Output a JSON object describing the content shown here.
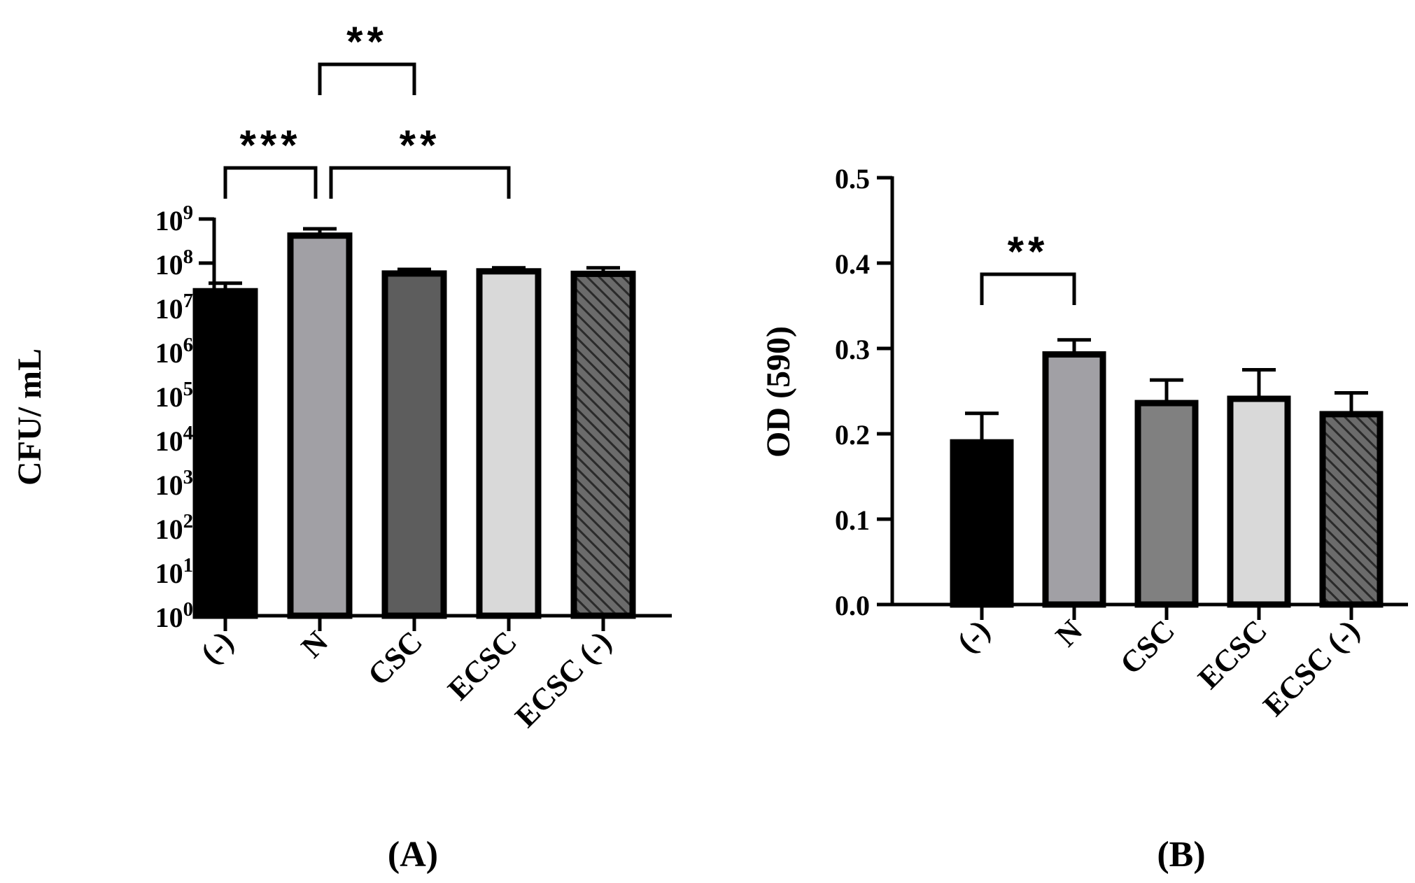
{
  "chart_data": [
    {
      "type": "bar",
      "panel_label": "(A)",
      "ylabel": "CFU/ mL",
      "yscale": "log10",
      "ylim": [
        1,
        1000000000
      ],
      "y_tick_exponents": [
        "0",
        "1",
        "2",
        "3",
        "4",
        "5",
        "6",
        "7",
        "8",
        "9"
      ],
      "y_tick_base": "10",
      "categories": [
        "(-)",
        "N",
        "CSC",
        "ECSC",
        "ECSC (-)"
      ],
      "values": [
        23000000,
        420000000,
        58000000,
        65000000,
        57000000
      ],
      "error_upper": [
        35000000,
        600000000,
        72000000,
        78000000,
        78000000
      ],
      "fills": [
        "#000000",
        "#a1a0a5",
        "#5d5d5d",
        "#d9d9d9",
        "hatch"
      ],
      "significance": [
        {
          "from": 0,
          "to": 1,
          "label": "***",
          "level": 1
        },
        {
          "from": 1,
          "to": 3,
          "label": "**",
          "level": 1
        },
        {
          "from": 1,
          "to": 2,
          "label": "**",
          "level": 2
        }
      ]
    },
    {
      "type": "bar",
      "panel_label": "(B)",
      "ylabel": "OD (590)",
      "yscale": "linear",
      "ylim": [
        0,
        0.5
      ],
      "y_ticks": [
        0.0,
        0.1,
        0.2,
        0.3,
        0.4,
        0.5
      ],
      "y_tick_labels": [
        "0.0",
        "0.1",
        "0.2",
        "0.3",
        "0.4",
        "0.5"
      ],
      "categories": [
        "(-)",
        "N",
        "CSC",
        "ECSC",
        "ECSC (-)"
      ],
      "values": [
        0.19,
        0.293,
        0.236,
        0.241,
        0.223
      ],
      "error_upper": [
        0.224,
        0.31,
        0.263,
        0.275,
        0.248
      ],
      "fills": [
        "#000000",
        "#a1a0a5",
        "#808080",
        "#d9d9d9",
        "hatch"
      ],
      "significance": [
        {
          "from": 0,
          "to": 1,
          "label": "**",
          "level": 1
        }
      ]
    }
  ]
}
